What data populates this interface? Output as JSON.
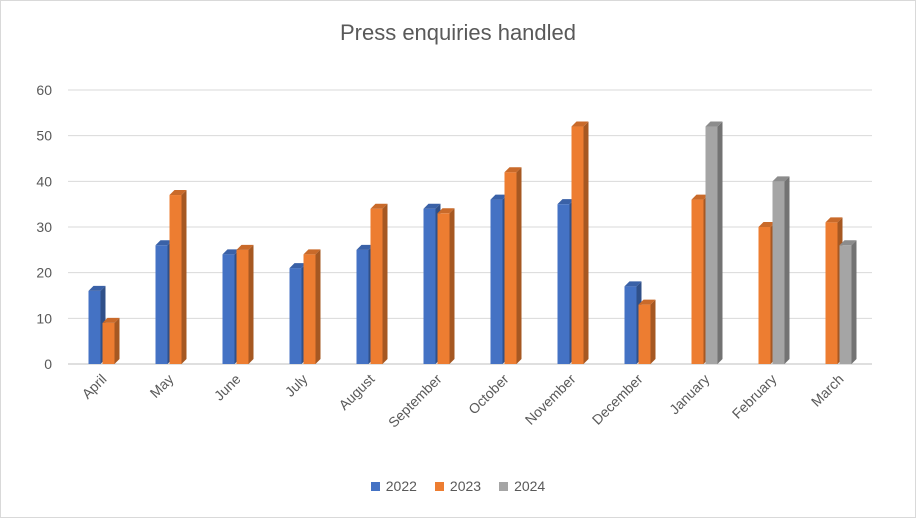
{
  "chart_data": {
    "type": "bar",
    "title": "Press enquiries handled",
    "xlabel": "",
    "ylabel": "",
    "ylim": [
      0,
      60
    ],
    "yticks": [
      0,
      10,
      20,
      30,
      40,
      50,
      60
    ],
    "grid": true,
    "legend": "bottom",
    "categories": [
      "April",
      "May",
      "June",
      "July",
      "August",
      "September",
      "October",
      "November",
      "December",
      "January",
      "February",
      "March"
    ],
    "series": [
      {
        "name": "2022",
        "color": "#4472C4",
        "values": [
          16,
          26,
          24,
          21,
          25,
          34,
          36,
          35,
          17,
          null,
          null,
          null
        ]
      },
      {
        "name": "2023",
        "color": "#ED7D31",
        "values": [
          9,
          37,
          25,
          24,
          34,
          33,
          42,
          52,
          13,
          36,
          30,
          31
        ]
      },
      {
        "name": "2024",
        "color": "#A5A5A5",
        "values": [
          null,
          null,
          null,
          null,
          null,
          null,
          null,
          null,
          null,
          52,
          40,
          26
        ]
      }
    ]
  }
}
